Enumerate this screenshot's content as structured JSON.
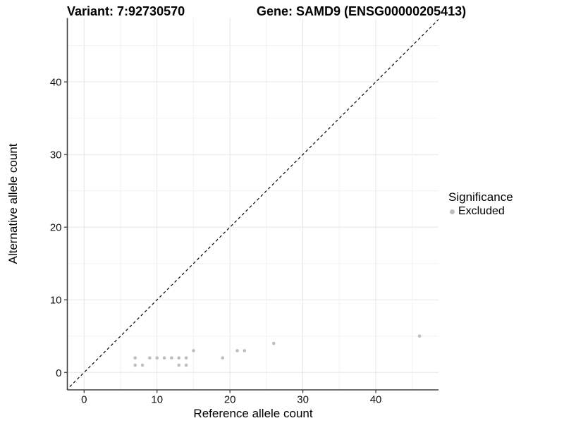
{
  "chart_data": {
    "type": "scatter",
    "title_left": "Variant: 7:92730570",
    "title_right": "Gene: SAMD9 (ENSG00000205413)",
    "xlabel": "Reference allele count",
    "ylabel": "Alternative allele count",
    "xlim": [
      -2.3,
      48.6
    ],
    "ylim": [
      -2.4,
      48.8
    ],
    "xticks": [
      0,
      10,
      20,
      30,
      40
    ],
    "yticks": [
      0,
      10,
      20,
      30,
      40
    ],
    "grid": true,
    "grid_step": 5,
    "reference_line": {
      "kind": "abline",
      "slope": 1,
      "intercept": 0,
      "style": "dashed",
      "color": "#000000"
    },
    "series": [
      {
        "name": "Excluded",
        "color": "#bebebe",
        "points": [
          [
            7,
            1
          ],
          [
            8,
            1
          ],
          [
            13,
            1
          ],
          [
            14,
            1
          ],
          [
            7,
            2
          ],
          [
            9,
            2
          ],
          [
            10,
            2
          ],
          [
            11,
            2
          ],
          [
            12,
            2
          ],
          [
            13,
            2
          ],
          [
            14,
            2
          ],
          [
            19,
            2
          ],
          [
            15,
            3
          ],
          [
            21,
            3
          ],
          [
            22,
            3
          ],
          [
            26,
            4
          ],
          [
            46,
            5
          ]
        ]
      }
    ],
    "legend": {
      "title": "Significance",
      "position": "right",
      "items": [
        {
          "label": "Excluded",
          "color": "#bebebe"
        }
      ]
    },
    "colors": {
      "background": "#ffffff",
      "grid_major": "#e6e6e6",
      "grid_minor": "#f2f2f2",
      "axis_line": "#404040",
      "tick_mark": "#333333",
      "tick_text": "#111111",
      "point": "#bebebe"
    }
  }
}
